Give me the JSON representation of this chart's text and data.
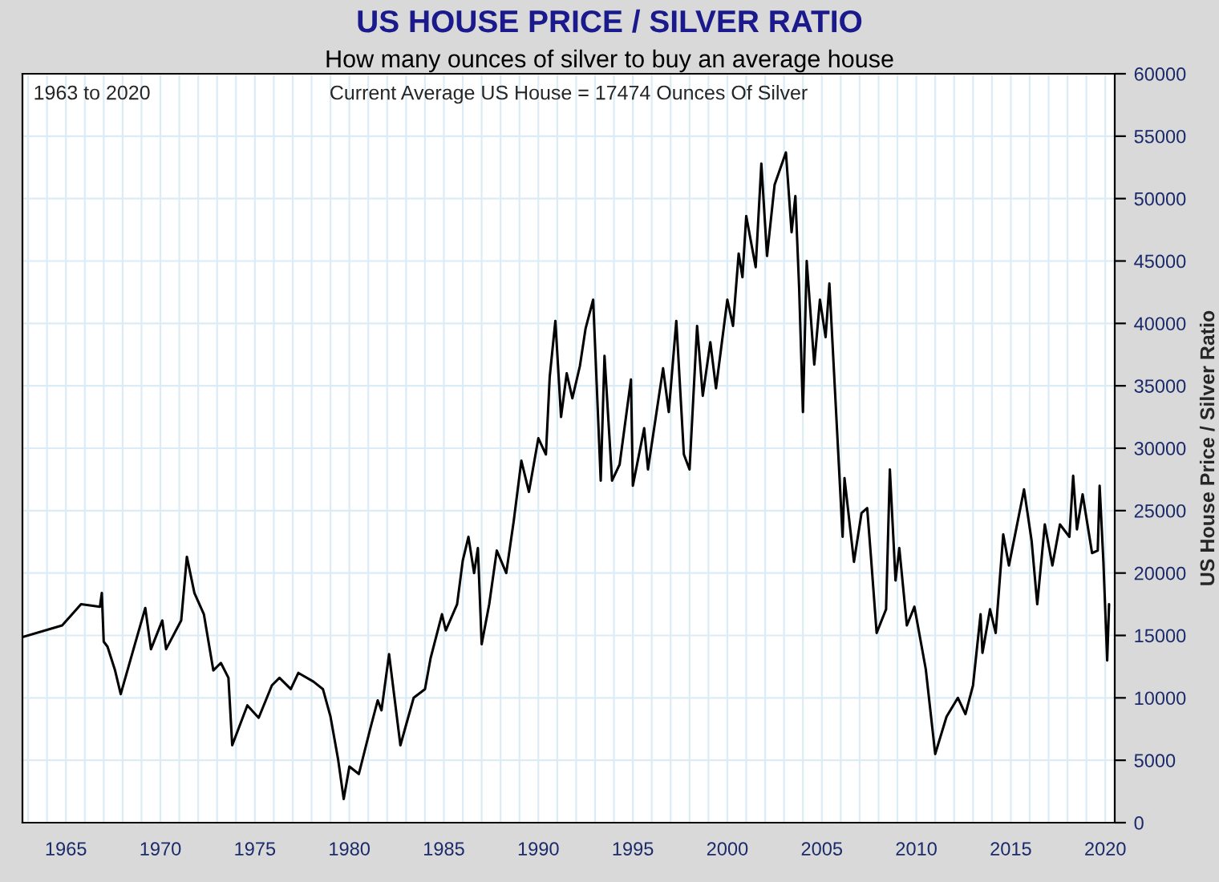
{
  "chart_data": {
    "type": "line",
    "title": "US HOUSE PRICE / SILVER RATIO",
    "subtitle": "How many ounces of silver to buy an average house",
    "ylabel": "US House Price / Silver Ratio",
    "annotations": [
      "1963 to 2020",
      "Current Average US House = 17474 Ounces Of Silver"
    ],
    "xlim": [
      1962.7,
      2020.5
    ],
    "xticks": [
      1965,
      1970,
      1975,
      1980,
      1985,
      1990,
      1995,
      2000,
      2005,
      2010,
      2015,
      2020
    ],
    "ylim": [
      0,
      60000
    ],
    "yticks": [
      0,
      5000,
      10000,
      15000,
      20000,
      25000,
      30000,
      35000,
      40000,
      45000,
      50000,
      55000,
      60000
    ],
    "grid": true,
    "legend": false,
    "marker": "none",
    "line_style": "solid",
    "series": [
      {
        "color": "#000000",
        "x": [
          1962.7,
          1964.8,
          1965.8,
          1966.8,
          1966.9,
          1967.0,
          1967.2,
          1967.6,
          1967.9,
          1968.5,
          1969.2,
          1969.5,
          1970.1,
          1970.3,
          1971.1,
          1971.4,
          1971.8,
          1972.3,
          1972.8,
          1973.2,
          1973.6,
          1973.8,
          1974.6,
          1975.2,
          1975.9,
          1976.3,
          1976.9,
          1977.3,
          1978.1,
          1978.6,
          1979.0,
          1979.4,
          1979.7,
          1980.0,
          1980.5,
          1981.1,
          1981.5,
          1981.7,
          1982.1,
          1982.7,
          1983.4,
          1984.0,
          1984.3,
          1984.9,
          1985.1,
          1985.7,
          1986.0,
          1986.3,
          1986.6,
          1986.8,
          1987.0,
          1987.4,
          1987.8,
          1988.3,
          1988.7,
          1989.1,
          1989.5,
          1990.0,
          1990.4,
          1990.6,
          1990.9,
          1991.2,
          1991.5,
          1991.8,
          1992.2,
          1992.5,
          1992.9,
          1993.3,
          1993.5,
          1993.9,
          1994.3,
          1994.9,
          1995.0,
          1995.6,
          1995.8,
          1996.6,
          1996.9,
          1997.3,
          1997.7,
          1998.0,
          1998.4,
          1998.7,
          1999.1,
          1999.4,
          2000.0,
          2000.3,
          2000.6,
          2000.8,
          2001.0,
          2001.5,
          2001.8,
          2002.1,
          2002.5,
          2003.1,
          2003.4,
          2003.6,
          2003.8,
          2004.0,
          2004.2,
          2004.6,
          2004.9,
          2005.2,
          2005.4,
          2005.8,
          2006.1,
          2006.2,
          2006.7,
          2007.1,
          2007.4,
          2007.6,
          2007.9,
          2008.4,
          2008.6,
          2008.9,
          2009.1,
          2009.5,
          2009.9,
          2010.5,
          2011.0,
          2011.6,
          2012.2,
          2012.6,
          2013.0,
          2013.4,
          2013.5,
          2013.9,
          2014.2,
          2014.6,
          2014.9,
          2015.4,
          2015.7,
          2016.1,
          2016.4,
          2016.8,
          2017.2,
          2017.6,
          2018.1,
          2018.3,
          2018.5,
          2018.8,
          2019.3,
          2019.6,
          2019.7,
          2019.9,
          2020.1,
          2020.2
        ],
        "values": [
          14870,
          15800,
          17500,
          17300,
          18400,
          14500,
          14100,
          12200,
          10300,
          13500,
          17200,
          13900,
          16200,
          13900,
          16200,
          21300,
          18400,
          16700,
          12200,
          12800,
          11600,
          6200,
          9400,
          8400,
          11000,
          11600,
          10700,
          12000,
          11300,
          10700,
          8500,
          5100,
          1900,
          4500,
          3900,
          7500,
          9800,
          9000,
          13500,
          6200,
          10000,
          10700,
          13200,
          16700,
          15400,
          17500,
          21000,
          22900,
          20000,
          22000,
          14300,
          17500,
          21800,
          20000,
          24200,
          29000,
          26500,
          30800,
          29500,
          35700,
          40200,
          32500,
          36000,
          34000,
          36600,
          39600,
          41900,
          27400,
          37400,
          27400,
          28700,
          35500,
          27000,
          31600,
          28300,
          36400,
          32900,
          40200,
          29500,
          28300,
          39800,
          34200,
          38500,
          34800,
          41900,
          39800,
          45600,
          43700,
          48600,
          44500,
          52800,
          45400,
          51100,
          53700,
          47300,
          50200,
          42800,
          32900,
          45000,
          36700,
          41900,
          38900,
          43200,
          31600,
          22900,
          27600,
          20900,
          24800,
          25200,
          21300,
          15200,
          17100,
          28300,
          19400,
          22000,
          15800,
          17300,
          12300,
          5500,
          8500,
          10000,
          8700,
          11000,
          16700,
          13600,
          17100,
          15200,
          23100,
          20600,
          24400,
          26700,
          22600,
          17500,
          23900,
          20600,
          23900,
          22900,
          27800,
          23500,
          26300,
          21600,
          21800,
          27000,
          20900,
          13000,
          17500
        ]
      }
    ]
  }
}
